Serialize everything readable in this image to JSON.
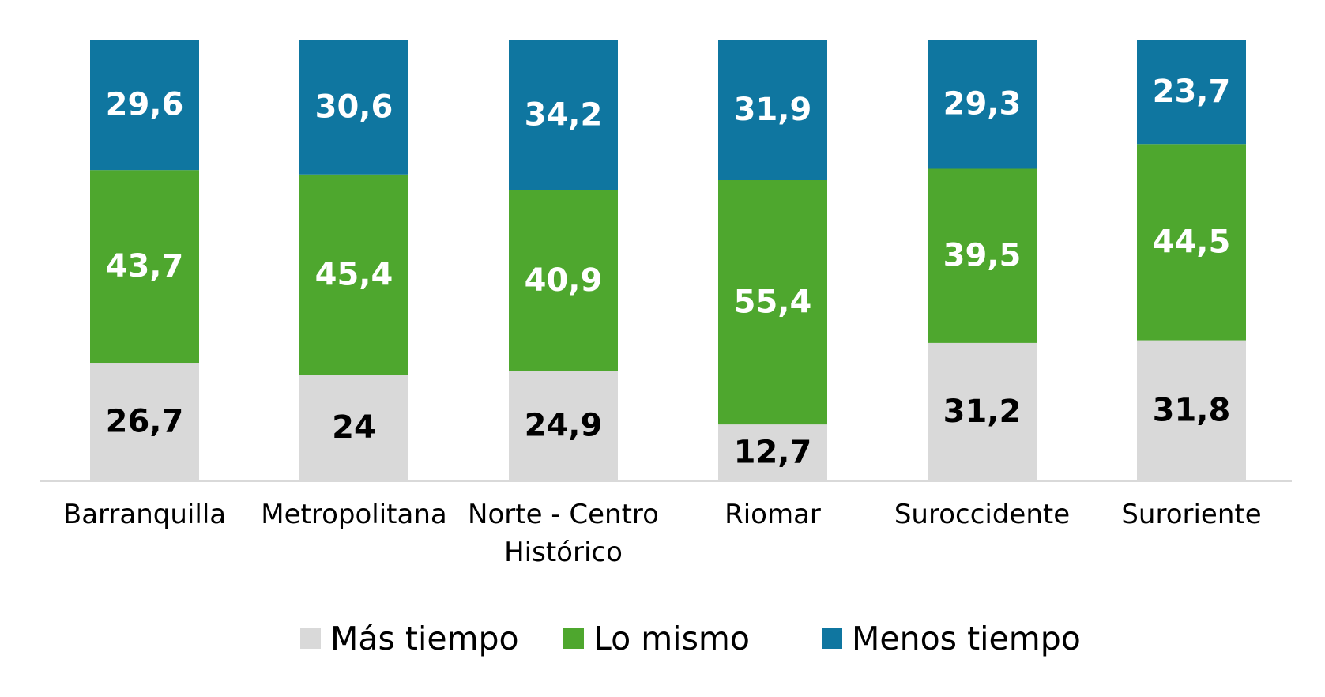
{
  "chart_data": {
    "type": "bar",
    "stacked": true,
    "stacked_percent": true,
    "title": "",
    "xlabel": "",
    "ylabel": "",
    "ylim": [
      0,
      100
    ],
    "grid": false,
    "legend_position": "bottom",
    "categories": [
      [
        "Barranquilla"
      ],
      [
        "Metropolitana"
      ],
      [
        "Norte - Centro",
        "Histórico"
      ],
      [
        "Riomar"
      ],
      [
        "Suroccidente"
      ],
      [
        "Suroriente"
      ]
    ],
    "series": [
      {
        "name": "Más tiempo",
        "color": "#d9d9d9",
        "label_color": "#000000",
        "values": [
          26.7,
          24,
          24.9,
          12.7,
          31.2,
          31.8
        ],
        "labels": [
          "26,7",
          "24",
          "24,9",
          "12,7",
          "31,2",
          "31,8"
        ]
      },
      {
        "name": "Lo mismo",
        "color": "#4ea72e",
        "label_color": "#ffffff",
        "values": [
          43.7,
          45.4,
          40.9,
          55.4,
          39.5,
          44.5
        ],
        "labels": [
          "43,7",
          "45,4",
          "40,9",
          "55,4",
          "39,5",
          "44,5"
        ]
      },
      {
        "name": "Menos tiempo",
        "color": "#0f76a0",
        "label_color": "#ffffff",
        "values": [
          29.6,
          30.6,
          34.2,
          31.9,
          29.3,
          23.7
        ],
        "labels": [
          "29,6",
          "30,6",
          "34,2",
          "31,9",
          "29,3",
          "23,7"
        ]
      }
    ],
    "axis_color": "#d9d9d9"
  }
}
